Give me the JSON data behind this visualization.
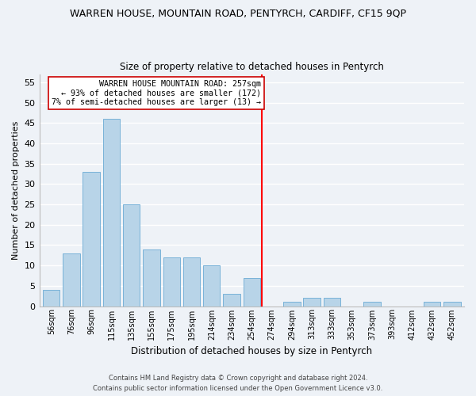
{
  "title": "WARREN HOUSE, MOUNTAIN ROAD, PENTYRCH, CARDIFF, CF15 9QP",
  "subtitle": "Size of property relative to detached houses in Pentyrch",
  "xlabel": "Distribution of detached houses by size in Pentyrch",
  "ylabel": "Number of detached properties",
  "bar_labels": [
    "56sqm",
    "76sqm",
    "96sqm",
    "115sqm",
    "135sqm",
    "155sqm",
    "175sqm",
    "195sqm",
    "214sqm",
    "234sqm",
    "254sqm",
    "274sqm",
    "294sqm",
    "313sqm",
    "333sqm",
    "353sqm",
    "373sqm",
    "393sqm",
    "412sqm",
    "432sqm",
    "452sqm"
  ],
  "bar_values": [
    4,
    13,
    33,
    46,
    25,
    14,
    12,
    12,
    10,
    3,
    7,
    0,
    1,
    2,
    2,
    0,
    1,
    0,
    0,
    1,
    1
  ],
  "bar_color": "#b8d4e8",
  "bar_edge_color": "#6aaad4",
  "ref_line_idx": 10.5,
  "annotation_line0": "WARREN HOUSE MOUNTAIN ROAD: 257sqm",
  "annotation_line1": "← 93% of detached houses are smaller (172)",
  "annotation_line2": "7% of semi-detached houses are larger (13) →",
  "ylim": [
    0,
    57
  ],
  "yticks": [
    0,
    5,
    10,
    15,
    20,
    25,
    30,
    35,
    40,
    45,
    50,
    55
  ],
  "footer_line1": "Contains HM Land Registry data © Crown copyright and database right 2024.",
  "footer_line2": "Contains public sector information licensed under the Open Government Licence v3.0.",
  "bg_color": "#eef2f7",
  "grid_color": "#ffffff",
  "title_fontsize": 9,
  "subtitle_fontsize": 8.5,
  "xlabel_fontsize": 8.5,
  "ylabel_fontsize": 8
}
